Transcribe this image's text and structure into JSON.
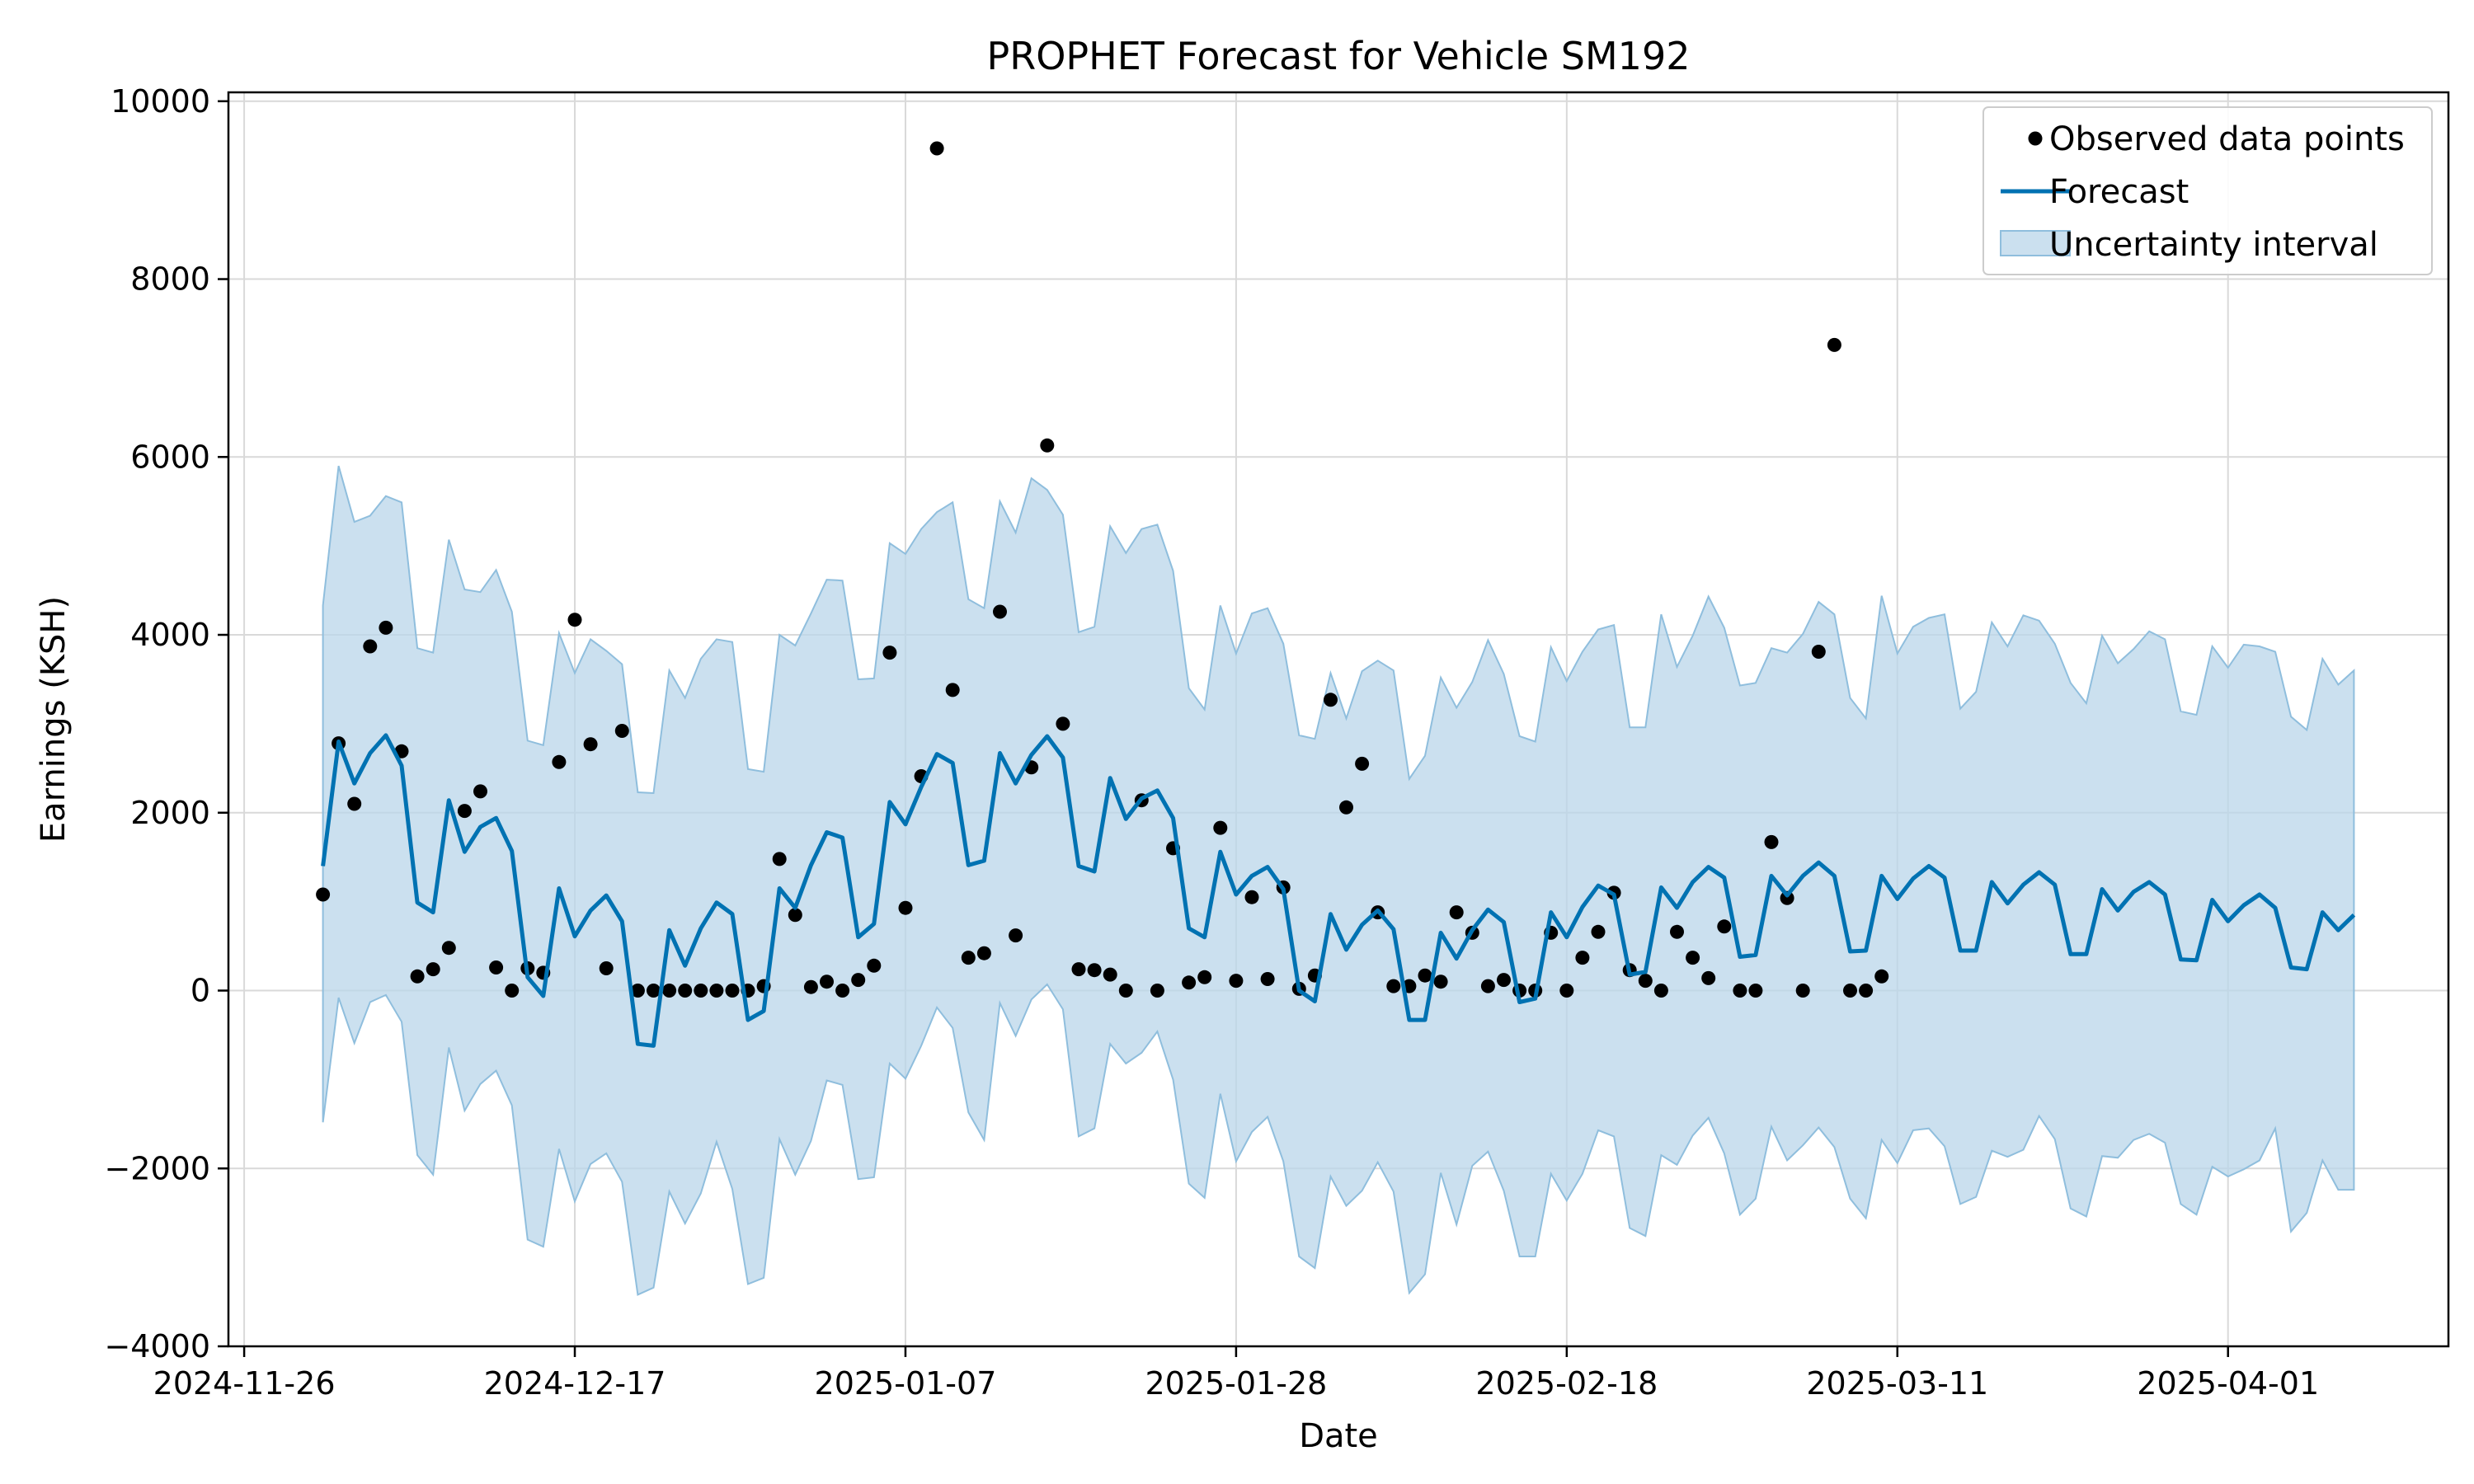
{
  "chart_data": {
    "type": "line",
    "title": "PROPHET Forecast for Vehicle SM192",
    "xlabel": "Date",
    "ylabel": "Earnings (KSH)",
    "xlim": [
      "2024-11-25",
      "2025-04-15"
    ],
    "ylim": [
      -4000,
      10100
    ],
    "grid": true,
    "legend_position": "top-right",
    "x_ticks": [
      "2024-11-26",
      "2024-12-17",
      "2025-01-07",
      "2025-01-28",
      "2025-02-18",
      "2025-03-11",
      "2025-04-01"
    ],
    "y_ticks": [
      -4000,
      -2000,
      0,
      2000,
      4000,
      6000,
      8000,
      10000
    ],
    "colors": {
      "forecast": "#0072B2",
      "band": "#B9D6EA",
      "band_edge": "#8FBEDD",
      "points": "#000000",
      "grid": "#d9d9d9"
    },
    "legend": {
      "observed": "Observed data points",
      "forecast": "Forecast",
      "interval": "Uncertainty interval"
    },
    "start_date": "2024-12-01",
    "forecast": [
      1400,
      2800,
      2330,
      2670,
      2870,
      2530,
      990,
      880,
      2140,
      1560,
      1840,
      1940,
      1570,
      150,
      -60,
      1150,
      610,
      900,
      1070,
      780,
      -600,
      -620,
      680,
      280,
      700,
      990,
      860,
      -330,
      -230,
      1150,
      930,
      1410,
      1780,
      1720,
      600,
      750,
      2120,
      1870,
      2290,
      2660,
      2560,
      1410,
      1460,
      2670,
      2330,
      2650,
      2860,
      2620,
      1400,
      1340,
      2390,
      1930,
      2160,
      2250,
      1940,
      700,
      600,
      1560,
      1080,
      1290,
      1390,
      1140,
      0,
      -120,
      860,
      460,
      740,
      900,
      690,
      -330,
      -330,
      650,
      360,
      680,
      910,
      770,
      -130,
      -90,
      880,
      600,
      940,
      1180,
      1080,
      180,
      210,
      1160,
      930,
      1220,
      1390,
      1270,
      380,
      400,
      1290,
      1070,
      1290,
      1440,
      1290,
      440,
      450,
      1290,
      1030,
      1260,
      1400,
      1270,
      450,
      450,
      1220,
      980,
      1190,
      1330,
      1190,
      410,
      410,
      1140,
      900,
      1110,
      1220,
      1080,
      350,
      340,
      1020,
      780,
      960,
      1080,
      930,
      260,
      240,
      880,
      680,
      850
    ],
    "upper": [
      4330,
      5900,
      5270,
      5340,
      5560,
      5490,
      3850,
      3800,
      5070,
      4510,
      4480,
      4730,
      4260,
      2810,
      2760,
      4020,
      3570,
      3950,
      3820,
      3670,
      2230,
      2220,
      3600,
      3290,
      3730,
      3950,
      3920,
      2490,
      2460,
      4000,
      3880,
      4240,
      4620,
      4610,
      3500,
      3510,
      5030,
      4910,
      5190,
      5380,
      5490,
      4400,
      4300,
      5500,
      5150,
      5760,
      5630,
      5350,
      4030,
      4090,
      5220,
      4920,
      5190,
      5240,
      4720,
      3400,
      3160,
      4330,
      3790,
      4240,
      4300,
      3900,
      2870,
      2830,
      3570,
      3060,
      3590,
      3710,
      3600,
      2380,
      2640,
      3520,
      3180,
      3470,
      3940,
      3560,
      2860,
      2800,
      3860,
      3480,
      3810,
      4060,
      4110,
      2960,
      2960,
      4230,
      3640,
      3990,
      4430,
      4080,
      3430,
      3460,
      3850,
      3800,
      4010,
      4370,
      4230,
      3290,
      3060,
      4440,
      3790,
      4090,
      4190,
      4230,
      3170,
      3360,
      4140,
      3870,
      4220,
      4160,
      3900,
      3460,
      3230,
      3990,
      3680,
      3840,
      4040,
      3950,
      3140,
      3100,
      3870,
      3630,
      3890,
      3870,
      3810,
      3080,
      2930,
      3730,
      3440,
      3600
    ],
    "lower": [
      -1480,
      -80,
      -590,
      -130,
      -50,
      -350,
      -1850,
      -2070,
      -640,
      -1350,
      -1050,
      -900,
      -1290,
      -2800,
      -2880,
      -1780,
      -2370,
      -1950,
      -1830,
      -2150,
      -3420,
      -3340,
      -2260,
      -2620,
      -2280,
      -1700,
      -2230,
      -3300,
      -3230,
      -1670,
      -2070,
      -1690,
      -1010,
      -1060,
      -2120,
      -2100,
      -820,
      -990,
      -620,
      -190,
      -420,
      -1370,
      -1680,
      -140,
      -510,
      -100,
      70,
      -210,
      -1640,
      -1550,
      -600,
      -820,
      -700,
      -460,
      -1000,
      -2170,
      -2330,
      -1160,
      -1920,
      -1590,
      -1420,
      -1920,
      -2990,
      -3120,
      -2090,
      -2420,
      -2250,
      -1930,
      -2260,
      -3400,
      -3190,
      -2050,
      -2630,
      -1970,
      -1810,
      -2250,
      -2990,
      -2990,
      -2060,
      -2360,
      -2060,
      -1570,
      -1640,
      -2670,
      -2760,
      -1850,
      -1960,
      -1630,
      -1430,
      -1830,
      -2520,
      -2340,
      -1530,
      -1910,
      -1740,
      -1540,
      -1760,
      -2340,
      -2560,
      -1680,
      -1940,
      -1570,
      -1550,
      -1750,
      -2400,
      -2320,
      -1800,
      -1870,
      -1790,
      -1410,
      -1670,
      -2450,
      -2540,
      -1860,
      -1880,
      -1680,
      -1610,
      -1710,
      -2400,
      -2520,
      -1980,
      -2090,
      -2010,
      -1910,
      -1550,
      -2710,
      -2500,
      -1910,
      -2240,
      -2240
    ],
    "observed": [
      {
        "x": "2024-12-01",
        "y": 1080
      },
      {
        "x": "2024-12-02",
        "y": 2780
      },
      {
        "x": "2024-12-03",
        "y": 2100
      },
      {
        "x": "2024-12-04",
        "y": 3870
      },
      {
        "x": "2024-12-05",
        "y": 4080
      },
      {
        "x": "2024-12-06",
        "y": 2690
      },
      {
        "x": "2024-12-07",
        "y": 160
      },
      {
        "x": "2024-12-08",
        "y": 240
      },
      {
        "x": "2024-12-09",
        "y": 480
      },
      {
        "x": "2024-12-10",
        "y": 2020
      },
      {
        "x": "2024-12-11",
        "y": 2240
      },
      {
        "x": "2024-12-12",
        "y": 260
      },
      {
        "x": "2024-12-13",
        "y": 0
      },
      {
        "x": "2024-12-14",
        "y": 250
      },
      {
        "x": "2024-12-15",
        "y": 200
      },
      {
        "x": "2024-12-16",
        "y": 2570
      },
      {
        "x": "2024-12-17",
        "y": 4170
      },
      {
        "x": "2024-12-18",
        "y": 2770
      },
      {
        "x": "2024-12-19",
        "y": 250
      },
      {
        "x": "2024-12-20",
        "y": 2920
      },
      {
        "x": "2024-12-21",
        "y": 0
      },
      {
        "x": "2024-12-22",
        "y": 0
      },
      {
        "x": "2024-12-23",
        "y": 0
      },
      {
        "x": "2024-12-24",
        "y": 0
      },
      {
        "x": "2024-12-25",
        "y": 0
      },
      {
        "x": "2024-12-26",
        "y": 0
      },
      {
        "x": "2024-12-27",
        "y": 0
      },
      {
        "x": "2024-12-28",
        "y": 0
      },
      {
        "x": "2024-12-29",
        "y": 50
      },
      {
        "x": "2024-12-30",
        "y": 1480
      },
      {
        "x": "2024-12-31",
        "y": 850
      },
      {
        "x": "2025-01-01",
        "y": 40
      },
      {
        "x": "2025-01-02",
        "y": 100
      },
      {
        "x": "2025-01-03",
        "y": 0
      },
      {
        "x": "2025-01-04",
        "y": 120
      },
      {
        "x": "2025-01-05",
        "y": 280
      },
      {
        "x": "2025-01-06",
        "y": 3800
      },
      {
        "x": "2025-01-07",
        "y": 930
      },
      {
        "x": "2025-01-08",
        "y": 2410
      },
      {
        "x": "2025-01-09",
        "y": 9470
      },
      {
        "x": "2025-01-10",
        "y": 3380
      },
      {
        "x": "2025-01-11",
        "y": 370
      },
      {
        "x": "2025-01-12",
        "y": 420
      },
      {
        "x": "2025-01-13",
        "y": 4260
      },
      {
        "x": "2025-01-14",
        "y": 620
      },
      {
        "x": "2025-01-15",
        "y": 2510
      },
      {
        "x": "2025-01-16",
        "y": 6130
      },
      {
        "x": "2025-01-17",
        "y": 3000
      },
      {
        "x": "2025-01-18",
        "y": 240
      },
      {
        "x": "2025-01-19",
        "y": 230
      },
      {
        "x": "2025-01-20",
        "y": 180
      },
      {
        "x": "2025-01-21",
        "y": 0
      },
      {
        "x": "2025-01-22",
        "y": 2140
      },
      {
        "x": "2025-01-23",
        "y": 0
      },
      {
        "x": "2025-01-24",
        "y": 1600
      },
      {
        "x": "2025-01-25",
        "y": 90
      },
      {
        "x": "2025-01-26",
        "y": 150
      },
      {
        "x": "2025-01-27",
        "y": 1830
      },
      {
        "x": "2025-01-28",
        "y": 110
      },
      {
        "x": "2025-01-29",
        "y": 1050
      },
      {
        "x": "2025-01-30",
        "y": 130
      },
      {
        "x": "2025-01-31",
        "y": 1160
      },
      {
        "x": "2025-02-01",
        "y": 20
      },
      {
        "x": "2025-02-02",
        "y": 170
      },
      {
        "x": "2025-02-03",
        "y": 3270
      },
      {
        "x": "2025-02-04",
        "y": 2060
      },
      {
        "x": "2025-02-05",
        "y": 2550
      },
      {
        "x": "2025-02-06",
        "y": 880
      },
      {
        "x": "2025-02-07",
        "y": 50
      },
      {
        "x": "2025-02-08",
        "y": 50
      },
      {
        "x": "2025-02-09",
        "y": 170
      },
      {
        "x": "2025-02-10",
        "y": 100
      },
      {
        "x": "2025-02-11",
        "y": 880
      },
      {
        "x": "2025-02-12",
        "y": 650
      },
      {
        "x": "2025-02-13",
        "y": 50
      },
      {
        "x": "2025-02-14",
        "y": 120
      },
      {
        "x": "2025-02-15",
        "y": 0
      },
      {
        "x": "2025-02-16",
        "y": 0
      },
      {
        "x": "2025-02-17",
        "y": 650
      },
      {
        "x": "2025-02-18",
        "y": 0
      },
      {
        "x": "2025-02-19",
        "y": 370
      },
      {
        "x": "2025-02-20",
        "y": 660
      },
      {
        "x": "2025-02-21",
        "y": 1100
      },
      {
        "x": "2025-02-22",
        "y": 230
      },
      {
        "x": "2025-02-23",
        "y": 110
      },
      {
        "x": "2025-02-24",
        "y": 0
      },
      {
        "x": "2025-02-25",
        "y": 660
      },
      {
        "x": "2025-02-26",
        "y": 370
      },
      {
        "x": "2025-02-27",
        "y": 140
      },
      {
        "x": "2025-02-28",
        "y": 720
      },
      {
        "x": "2025-03-01",
        "y": 0
      },
      {
        "x": "2025-03-02",
        "y": 0
      },
      {
        "x": "2025-03-03",
        "y": 1670
      },
      {
        "x": "2025-03-04",
        "y": 1040
      },
      {
        "x": "2025-03-05",
        "y": 0
      },
      {
        "x": "2025-03-06",
        "y": 3810
      },
      {
        "x": "2025-03-07",
        "y": 7260
      },
      {
        "x": "2025-03-08",
        "y": 0
      },
      {
        "x": "2025-03-09",
        "y": 0
      },
      {
        "x": "2025-03-10",
        "y": 160
      }
    ]
  }
}
